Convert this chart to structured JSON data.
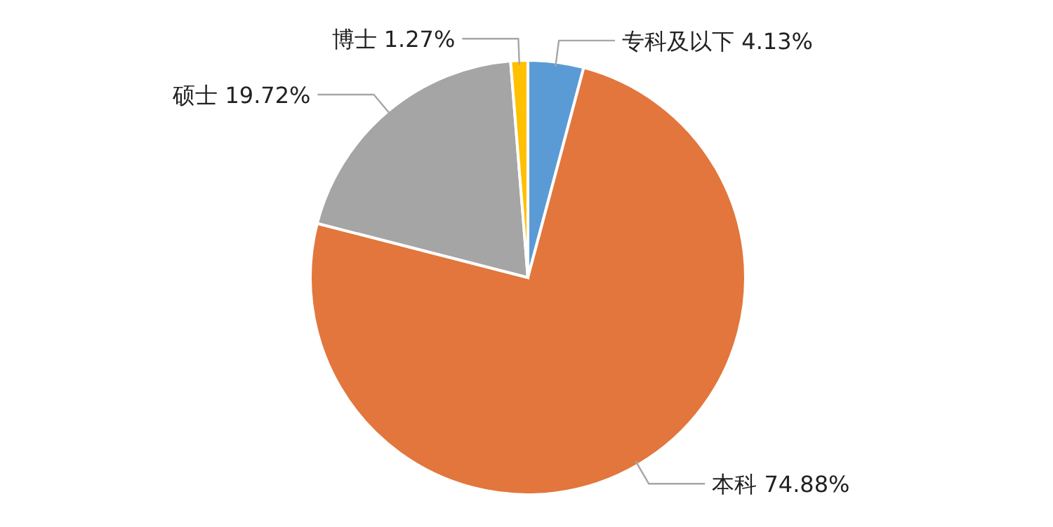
{
  "chart_data": {
    "type": "pie",
    "categories": [
      "专科及以下",
      "本科",
      "硕士",
      "博士"
    ],
    "values": [
      4.13,
      74.88,
      19.72,
      1.27
    ],
    "value_labels": [
      "4.13%",
      "74.88%",
      "19.72%",
      "1.27%"
    ],
    "colors": [
      "#5b9bd5",
      "#e2763d",
      "#a5a5a5",
      "#ffc000"
    ],
    "legend": false
  }
}
